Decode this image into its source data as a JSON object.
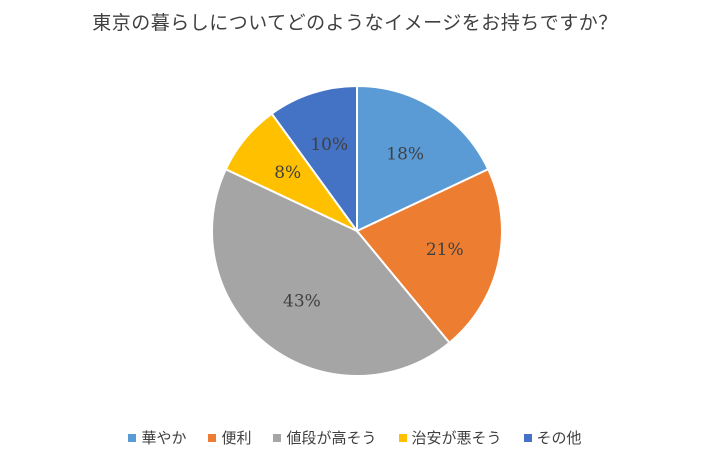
{
  "chart_data": {
    "type": "pie",
    "title": "東京の暮らしについてどのようなイメージをお持ちですか？",
    "categories": [
      "華やか",
      "便利",
      "値段が高そう",
      "治安が悪そう",
      "その他"
    ],
    "values": [
      18,
      21,
      43,
      8,
      10
    ],
    "data_labels": [
      "18%",
      "21%",
      "43%",
      "8%",
      "10%"
    ],
    "colors": [
      "#5b9bd5",
      "#ed7d31",
      "#a5a5a5",
      "#ffc000",
      "#4472c4"
    ],
    "legend_position": "bottom"
  }
}
